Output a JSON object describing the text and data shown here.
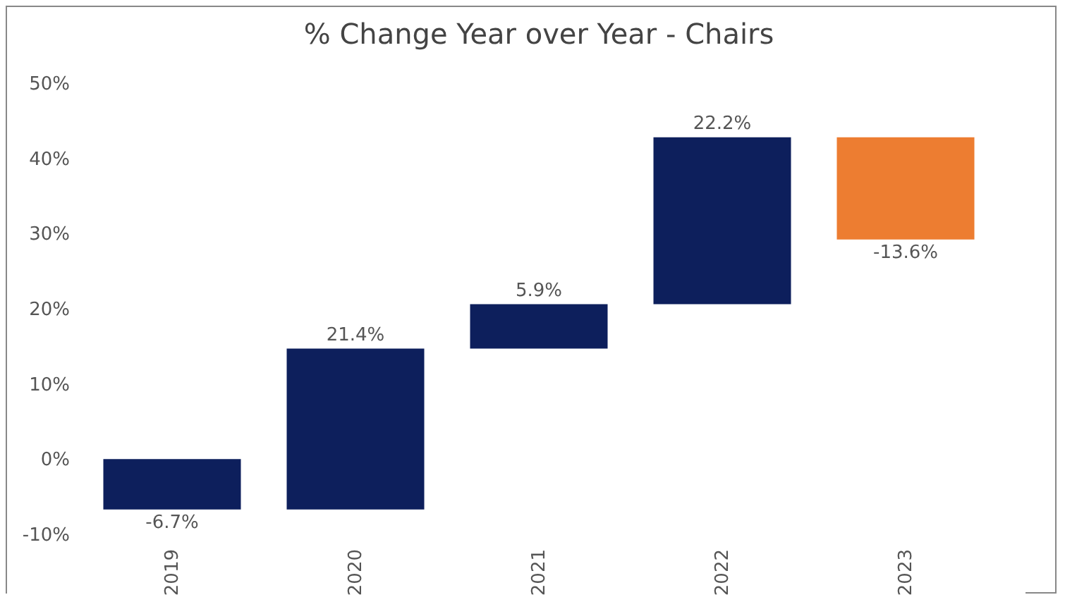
{
  "chart_data": {
    "type": "bar",
    "title": "% Change Year over Year - Chairs",
    "categories": [
      "2019",
      "2020",
      "2021",
      "2022",
      "2023"
    ],
    "values": [
      -6.7,
      21.4,
      5.9,
      22.2,
      -13.6
    ],
    "base": [
      0,
      -6.7,
      14.7,
      20.6,
      42.8
    ],
    "colors": [
      "#0d1f5c",
      "#0d1f5c",
      "#0d1f5c",
      "#0d1f5c",
      "#ed7d31"
    ],
    "value_labels": [
      "-6.7%",
      "21.4%",
      "5.9%",
      "22.2%",
      "-13.6%"
    ],
    "ylim": [
      -10,
      50
    ],
    "yticks": [
      {
        "value": -10,
        "label": "-10%"
      },
      {
        "value": 0,
        "label": "0%"
      },
      {
        "value": 10,
        "label": "10%"
      },
      {
        "value": 20,
        "label": "20%"
      },
      {
        "value": 30,
        "label": "30%"
      },
      {
        "value": 40,
        "label": "40%"
      },
      {
        "value": 50,
        "label": "50%"
      }
    ],
    "grid": false
  }
}
